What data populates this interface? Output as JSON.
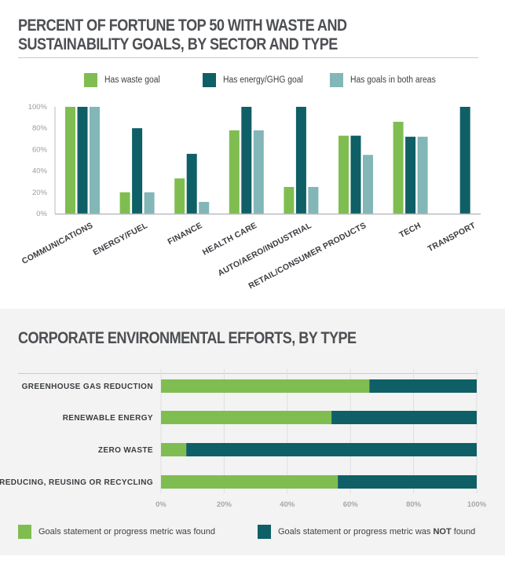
{
  "colors": {
    "waste": "#80bd51",
    "energy": "#0f5f67",
    "both": "#82b6b7",
    "found": "#80bd51",
    "not_found": "#0f5f67"
  },
  "chart_data": [
    {
      "type": "bar",
      "title": "PERCENT OF FORTUNE TOP 50 WITH WASTE AND SUSTAINABILITY GOALS, BY SECTOR AND TYPE",
      "title_lines": [
        "PERCENT OF FORTUNE TOP 50 WITH WASTE AND",
        "SUSTAINABILITY GOALS, BY SECTOR AND TYPE"
      ],
      "xlabel": "",
      "ylabel": "",
      "ylim": [
        0,
        100
      ],
      "yticks": [
        0,
        20,
        40,
        60,
        80,
        100
      ],
      "ytick_labels": [
        "0%",
        "20%",
        "40%",
        "60%",
        "80%",
        "100%"
      ],
      "grid": false,
      "legend_position": "top",
      "categories": [
        "COMMUNICATIONS",
        "ENERGY/FUEL",
        "FINANCE",
        "HEALTH CARE",
        "AUTO/AERO/INDUSTRIAL",
        "RETAIL/CONSUMER PRODUCTS",
        "TECH",
        "TRANSPORT"
      ],
      "series": [
        {
          "name": "Has waste goal",
          "color_key": "waste",
          "values": [
            100,
            20,
            33,
            78,
            25,
            73,
            86,
            0
          ]
        },
        {
          "name": "Has energy/GHG goal",
          "color_key": "energy",
          "values": [
            100,
            80,
            56,
            100,
            100,
            73,
            72,
            100
          ]
        },
        {
          "name": "Has goals in both areas",
          "color_key": "both",
          "values": [
            100,
            20,
            11,
            78,
            25,
            55,
            72,
            0
          ]
        }
      ]
    },
    {
      "type": "bar",
      "orientation": "horizontal-stacked",
      "title": "CORPORATE ENVIRONMENTAL EFFORTS, BY TYPE",
      "xlabel": "",
      "ylabel": "",
      "xlim": [
        0,
        100
      ],
      "xticks": [
        0,
        20,
        40,
        60,
        80,
        100
      ],
      "xtick_labels": [
        "0%",
        "20%",
        "40%",
        "60%",
        "80%",
        "100%"
      ],
      "grid": true,
      "legend_position": "bottom",
      "categories": [
        "GREENHOUSE GAS REDUCTION",
        "RENEWABLE ENERGY",
        "ZERO WASTE",
        "REDUCING, REUSING OR RECYCLING"
      ],
      "series": [
        {
          "name": "Goals statement or progress metric was found",
          "color_key": "found",
          "values": [
            66,
            54,
            8,
            56
          ]
        },
        {
          "name": "Goals statement or progress metric was NOT found",
          "color_key": "not_found",
          "values": [
            34,
            46,
            92,
            44
          ]
        }
      ]
    }
  ],
  "legend2": {
    "found_label": "Goals statement or progress metric was found",
    "not_found_prefix": "Goals statement or progress metric was ",
    "not_found_emph": "NOT",
    "not_found_suffix": " found"
  }
}
